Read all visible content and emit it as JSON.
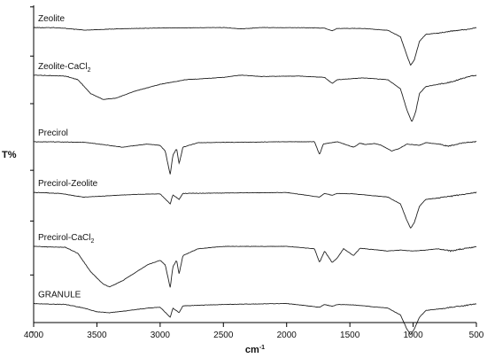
{
  "chart_data": {
    "type": "line",
    "ylabel": "T%",
    "xlabel": "cm",
    "xlabel_sup": "-1",
    "xlim": [
      4000,
      500
    ],
    "x_ticks": [
      4000,
      3500,
      3000,
      2500,
      2000,
      1500,
      1000,
      500
    ],
    "x_tick_labels": [
      "4000",
      "3500",
      "3000",
      "2500",
      "2000",
      "1500",
      "1000",
      "500"
    ],
    "grid": false,
    "series": [
      {
        "name": "Zeolite",
        "label_main": "Zeolite",
        "label_sub": "",
        "baseline": 0.93,
        "points": [
          [
            4000,
            0.0
          ],
          [
            3800,
            0.005
          ],
          [
            3600,
            0.06
          ],
          [
            3400,
            0.035
          ],
          [
            3200,
            0.02
          ],
          [
            3000,
            0.01
          ],
          [
            2500,
            0.0
          ],
          [
            2360,
            0.03
          ],
          [
            2200,
            0.0
          ],
          [
            1800,
            0.005
          ],
          [
            1700,
            0.015
          ],
          [
            1640,
            0.07
          ],
          [
            1600,
            0.02
          ],
          [
            1400,
            0.02
          ],
          [
            1200,
            0.06
          ],
          [
            1100,
            0.2
          ],
          [
            1050,
            0.6
          ],
          [
            1020,
            0.82
          ],
          [
            990,
            0.7
          ],
          [
            950,
            0.3
          ],
          [
            900,
            0.15
          ],
          [
            800,
            0.12
          ],
          [
            750,
            0.1
          ],
          [
            700,
            0.08
          ],
          [
            600,
            0.05
          ],
          [
            500,
            0.0
          ]
        ]
      },
      {
        "name": "Zeolite-CaCl2",
        "label_main": "Zeolite-CaCl",
        "label_sub": "2",
        "baseline": 0.78,
        "points": [
          [
            4000,
            0.0
          ],
          [
            3750,
            0.02
          ],
          [
            3650,
            0.1
          ],
          [
            3550,
            0.4
          ],
          [
            3450,
            0.53
          ],
          [
            3350,
            0.5
          ],
          [
            3200,
            0.35
          ],
          [
            3000,
            0.2
          ],
          [
            2800,
            0.1
          ],
          [
            2500,
            0.05
          ],
          [
            2360,
            0.0
          ],
          [
            2200,
            0.03
          ],
          [
            1900,
            0.02
          ],
          [
            1700,
            0.05
          ],
          [
            1640,
            0.18
          ],
          [
            1600,
            0.1
          ],
          [
            1400,
            0.06
          ],
          [
            1200,
            0.1
          ],
          [
            1100,
            0.3
          ],
          [
            1050,
            0.75
          ],
          [
            1010,
            1.02
          ],
          [
            980,
            0.8
          ],
          [
            950,
            0.4
          ],
          [
            900,
            0.25
          ],
          [
            800,
            0.2
          ],
          [
            700,
            0.15
          ],
          [
            600,
            0.06
          ],
          [
            500,
            0.0
          ]
        ]
      },
      {
        "name": "Precirol",
        "label_main": "Precirol",
        "label_sub": "",
        "baseline": 0.57,
        "points": [
          [
            4000,
            0.0
          ],
          [
            3600,
            0.01
          ],
          [
            3400,
            0.08
          ],
          [
            3300,
            0.12
          ],
          [
            3100,
            0.05
          ],
          [
            3000,
            0.08
          ],
          [
            2960,
            0.2
          ],
          [
            2920,
            0.72
          ],
          [
            2900,
            0.3
          ],
          [
            2870,
            0.15
          ],
          [
            2850,
            0.48
          ],
          [
            2820,
            0.12
          ],
          [
            2700,
            0.02
          ],
          [
            2000,
            0.0
          ],
          [
            1780,
            0.0
          ],
          [
            1740,
            0.28
          ],
          [
            1710,
            0.05
          ],
          [
            1600,
            0.0
          ],
          [
            1470,
            0.12
          ],
          [
            1420,
            0.03
          ],
          [
            1380,
            0.06
          ],
          [
            1300,
            0.04
          ],
          [
            1250,
            0.08
          ],
          [
            1170,
            0.2
          ],
          [
            1110,
            0.15
          ],
          [
            1050,
            0.05
          ],
          [
            950,
            0.08
          ],
          [
            900,
            0.02
          ],
          [
            800,
            0.05
          ],
          [
            720,
            0.1
          ],
          [
            600,
            0.02
          ],
          [
            500,
            0.0
          ]
        ]
      },
      {
        "name": "Precirol-Zeolite",
        "label_main": "Precirol-Zeolite",
        "label_sub": "",
        "baseline": 0.41,
        "points": [
          [
            4000,
            0.0
          ],
          [
            3800,
            0.02
          ],
          [
            3600,
            0.1
          ],
          [
            3400,
            0.07
          ],
          [
            3200,
            0.04
          ],
          [
            3000,
            0.03
          ],
          [
            2920,
            0.25
          ],
          [
            2900,
            0.05
          ],
          [
            2850,
            0.15
          ],
          [
            2820,
            0.02
          ],
          [
            2000,
            0.0
          ],
          [
            1740,
            0.1
          ],
          [
            1700,
            0.02
          ],
          [
            1640,
            0.06
          ],
          [
            1600,
            0.02
          ],
          [
            1470,
            0.03
          ],
          [
            1200,
            0.1
          ],
          [
            1100,
            0.25
          ],
          [
            1050,
            0.6
          ],
          [
            1020,
            0.78
          ],
          [
            990,
            0.65
          ],
          [
            950,
            0.3
          ],
          [
            900,
            0.15
          ],
          [
            800,
            0.12
          ],
          [
            700,
            0.08
          ],
          [
            600,
            0.04
          ],
          [
            500,
            0.0
          ]
        ]
      },
      {
        "name": "Precirol-CaCl2",
        "label_main": "Precirol-CaCl",
        "label_sub": "2",
        "baseline": 0.24,
        "points": [
          [
            4000,
            0.0
          ],
          [
            3750,
            0.02
          ],
          [
            3650,
            0.15
          ],
          [
            3550,
            0.55
          ],
          [
            3450,
            0.82
          ],
          [
            3400,
            0.88
          ],
          [
            3300,
            0.75
          ],
          [
            3100,
            0.4
          ],
          [
            3000,
            0.3
          ],
          [
            2960,
            0.4
          ],
          [
            2920,
            0.9
          ],
          [
            2900,
            0.45
          ],
          [
            2870,
            0.3
          ],
          [
            2850,
            0.6
          ],
          [
            2820,
            0.2
          ],
          [
            2700,
            0.05
          ],
          [
            2500,
            0.0
          ],
          [
            2000,
            0.0
          ],
          [
            1780,
            0.05
          ],
          [
            1740,
            0.35
          ],
          [
            1700,
            0.1
          ],
          [
            1640,
            0.35
          ],
          [
            1600,
            0.25
          ],
          [
            1550,
            0.05
          ],
          [
            1470,
            0.2
          ],
          [
            1420,
            0.04
          ],
          [
            1200,
            0.1
          ],
          [
            1100,
            0.08
          ],
          [
            1000,
            0.1
          ],
          [
            900,
            0.08
          ],
          [
            800,
            0.05
          ],
          [
            700,
            0.1
          ],
          [
            600,
            0.05
          ],
          [
            500,
            0.0
          ]
        ]
      },
      {
        "name": "GRANULE",
        "label_main": "GRANULE",
        "label_sub": "",
        "baseline": 0.06,
        "points": [
          [
            4000,
            0.0
          ],
          [
            3750,
            0.02
          ],
          [
            3600,
            0.1
          ],
          [
            3500,
            0.18
          ],
          [
            3400,
            0.2
          ],
          [
            3300,
            0.17
          ],
          [
            3100,
            0.1
          ],
          [
            3000,
            0.08
          ],
          [
            2920,
            0.3
          ],
          [
            2900,
            0.1
          ],
          [
            2850,
            0.2
          ],
          [
            2820,
            0.05
          ],
          [
            2500,
            0.02
          ],
          [
            2000,
            0.0
          ],
          [
            1740,
            0.08
          ],
          [
            1700,
            0.02
          ],
          [
            1640,
            0.06
          ],
          [
            1600,
            0.02
          ],
          [
            1470,
            0.03
          ],
          [
            1200,
            0.1
          ],
          [
            1100,
            0.25
          ],
          [
            1050,
            0.55
          ],
          [
            1020,
            0.68
          ],
          [
            990,
            0.55
          ],
          [
            950,
            0.3
          ],
          [
            900,
            0.15
          ],
          [
            800,
            0.12
          ],
          [
            700,
            0.08
          ],
          [
            600,
            0.05
          ],
          [
            500,
            0.0
          ]
        ]
      }
    ]
  }
}
